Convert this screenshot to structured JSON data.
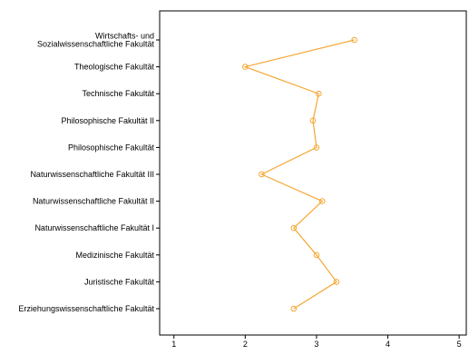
{
  "chart_data": {
    "type": "line",
    "orientation": "horizontal",
    "title": "",
    "xlabel": "",
    "ylabel": "",
    "xlim": [
      0.8,
      5.1
    ],
    "x_ticks": [
      1,
      2,
      3,
      4,
      5
    ],
    "x_tick_labels": [
      "1",
      "2",
      "3",
      "4",
      "5"
    ],
    "grid": false,
    "legend": "none",
    "line_color": "#f5a733",
    "categories": [
      "Wirtschafts- und Sozialwissenschaftliche Fakultät",
      "Theologische Fakultät",
      "Technische Fakultät",
      "Philosophische Fakultät II",
      "Philosophische Fakultät",
      "Naturwissenschaftliche Fakultät III",
      "Naturwissenschaftliche Fakultät II",
      "Naturwissenschaftliche Fakultät I",
      "Medizinische Fakultät",
      "Juristische Fakultät",
      "Erziehungswissenschaftliche Fakultät"
    ],
    "category_label_lines": [
      [
        "Wirtschafts- und",
        "Sozialwissenschaftliche Fakultät"
      ],
      [
        "Theologische Fakultät"
      ],
      [
        "Technische Fakultät"
      ],
      [
        "Philosophische Fakultät II"
      ],
      [
        "Philosophische Fakultät"
      ],
      [
        "Naturwissenschaftliche Fakultät III"
      ],
      [
        "Naturwissenschaftliche Fakultät II"
      ],
      [
        "Naturwissenschaftliche Fakultät I"
      ],
      [
        "Medizinische Fakultät"
      ],
      [
        "Juristische Fakultät"
      ],
      [
        "Erziehungswissenschaftliche Fakultät"
      ]
    ],
    "values": [
      3.53,
      2.0,
      3.03,
      2.95,
      3.0,
      2.23,
      3.08,
      2.68,
      3.0,
      3.28,
      2.68
    ]
  }
}
